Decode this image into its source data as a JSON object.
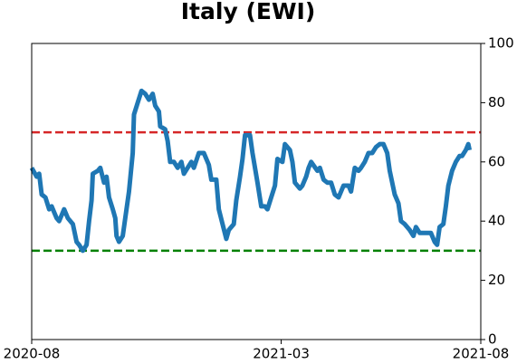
{
  "chart_data": {
    "type": "line",
    "title": "Italy (EWI)",
    "x": [
      0,
      4,
      6,
      8,
      11,
      14,
      16,
      20,
      22,
      24,
      26,
      29,
      33,
      36,
      38,
      41,
      44,
      46,
      48,
      49,
      53,
      55,
      58,
      60,
      62,
      65,
      67,
      68,
      70,
      73,
      75,
      78,
      81,
      82,
      85,
      88,
      91,
      94,
      97,
      99,
      102,
      103,
      107,
      109,
      111,
      114,
      117,
      120,
      122,
      125,
      128,
      130,
      134,
      138,
      142,
      144,
      148,
      150,
      153,
      156,
      158,
      162,
      164,
      167,
      169,
      171,
      175,
      177,
      179,
      181,
      184,
      187,
      189,
      192,
      195,
      197,
      201,
      203,
      207,
      209,
      211,
      215,
      217,
      220,
      222,
      224,
      229,
      231,
      234,
      237,
      240,
      243,
      246,
      250,
      254,
      256,
      259,
      262,
      264,
      267,
      270,
      273,
      276,
      279,
      282,
      285,
      287,
      291,
      294,
      296,
      299,
      303,
      306,
      308,
      311,
      314,
      317,
      320,
      323,
      325,
      327,
      330,
      332,
      334,
      337,
      340,
      343,
      345,
      348,
      350,
      351
    ],
    "series": [
      {
        "color": "#1f77b4",
        "values": [
          58,
          55,
          56,
          49,
          48,
          44,
          45,
          41,
          40,
          42,
          44,
          41,
          39,
          33,
          32,
          30,
          32,
          40,
          47,
          56,
          57,
          58,
          53,
          55,
          48,
          44,
          41,
          35,
          33,
          35,
          41,
          50,
          63,
          76,
          80,
          84,
          83,
          81,
          83,
          79,
          77,
          72,
          71,
          67,
          60,
          60,
          58,
          60,
          56,
          58,
          60,
          58,
          63,
          63,
          59,
          54,
          54,
          44,
          39,
          34,
          37,
          39,
          47,
          55,
          61,
          69,
          69,
          63,
          58,
          53,
          45,
          45,
          44,
          48,
          52,
          61,
          60,
          66,
          64,
          60,
          53,
          51,
          52,
          55,
          58,
          60,
          57,
          58,
          54,
          53,
          53,
          49,
          48,
          52,
          52,
          50,
          58,
          57,
          58,
          60,
          63,
          63,
          65,
          66,
          66,
          63,
          57,
          49,
          46,
          40,
          39,
          37,
          35,
          38,
          36,
          36,
          36,
          36,
          33,
          32,
          38,
          39,
          45,
          52,
          57,
          60,
          62,
          62,
          64,
          66,
          64
        ]
      }
    ],
    "reference_lines": [
      {
        "value": 70,
        "color": "#d62728"
      },
      {
        "value": 30,
        "color": "#008000"
      }
    ],
    "xlim": [
      0,
      360
    ],
    "xticks": [
      {
        "value": 0,
        "label": "2020-08"
      },
      {
        "value": 200,
        "label": "2021-03"
      },
      {
        "value": 360,
        "label": "2021-08"
      }
    ],
    "ylim": [
      0,
      100
    ],
    "yticks": [
      0,
      20,
      40,
      60,
      80,
      100
    ],
    "y_axis_side": "right"
  }
}
